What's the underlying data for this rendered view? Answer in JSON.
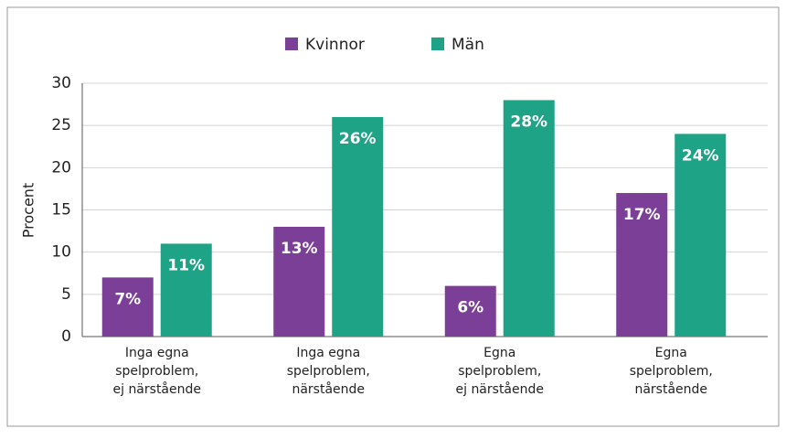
{
  "chart_data": {
    "type": "bar",
    "categories": [
      [
        "Inga egna",
        "spelproblem,",
        "ej närstående"
      ],
      [
        "Inga egna",
        "spelproblem,",
        "närstående"
      ],
      [
        "Egna",
        "spelproblem,",
        "ej närstående"
      ],
      [
        "Egna",
        "spelproblem,",
        "närstående"
      ]
    ],
    "series": [
      {
        "name": "Kvinnor",
        "color": "#7b3f98",
        "values": [
          7,
          13,
          6,
          17
        ],
        "value_labels": [
          "7%",
          "13%",
          "6%",
          "17%"
        ]
      },
      {
        "name": "Män",
        "color": "#1fa386",
        "values": [
          11,
          26,
          28,
          24
        ],
        "value_labels": [
          "11%",
          "26%",
          "28%",
          "24%"
        ]
      }
    ],
    "ylabel": "Procent",
    "ylim": [
      0,
      30
    ],
    "yticks": [
      0,
      5,
      10,
      15,
      20,
      25,
      30
    ],
    "grid": true,
    "legend": "top"
  }
}
